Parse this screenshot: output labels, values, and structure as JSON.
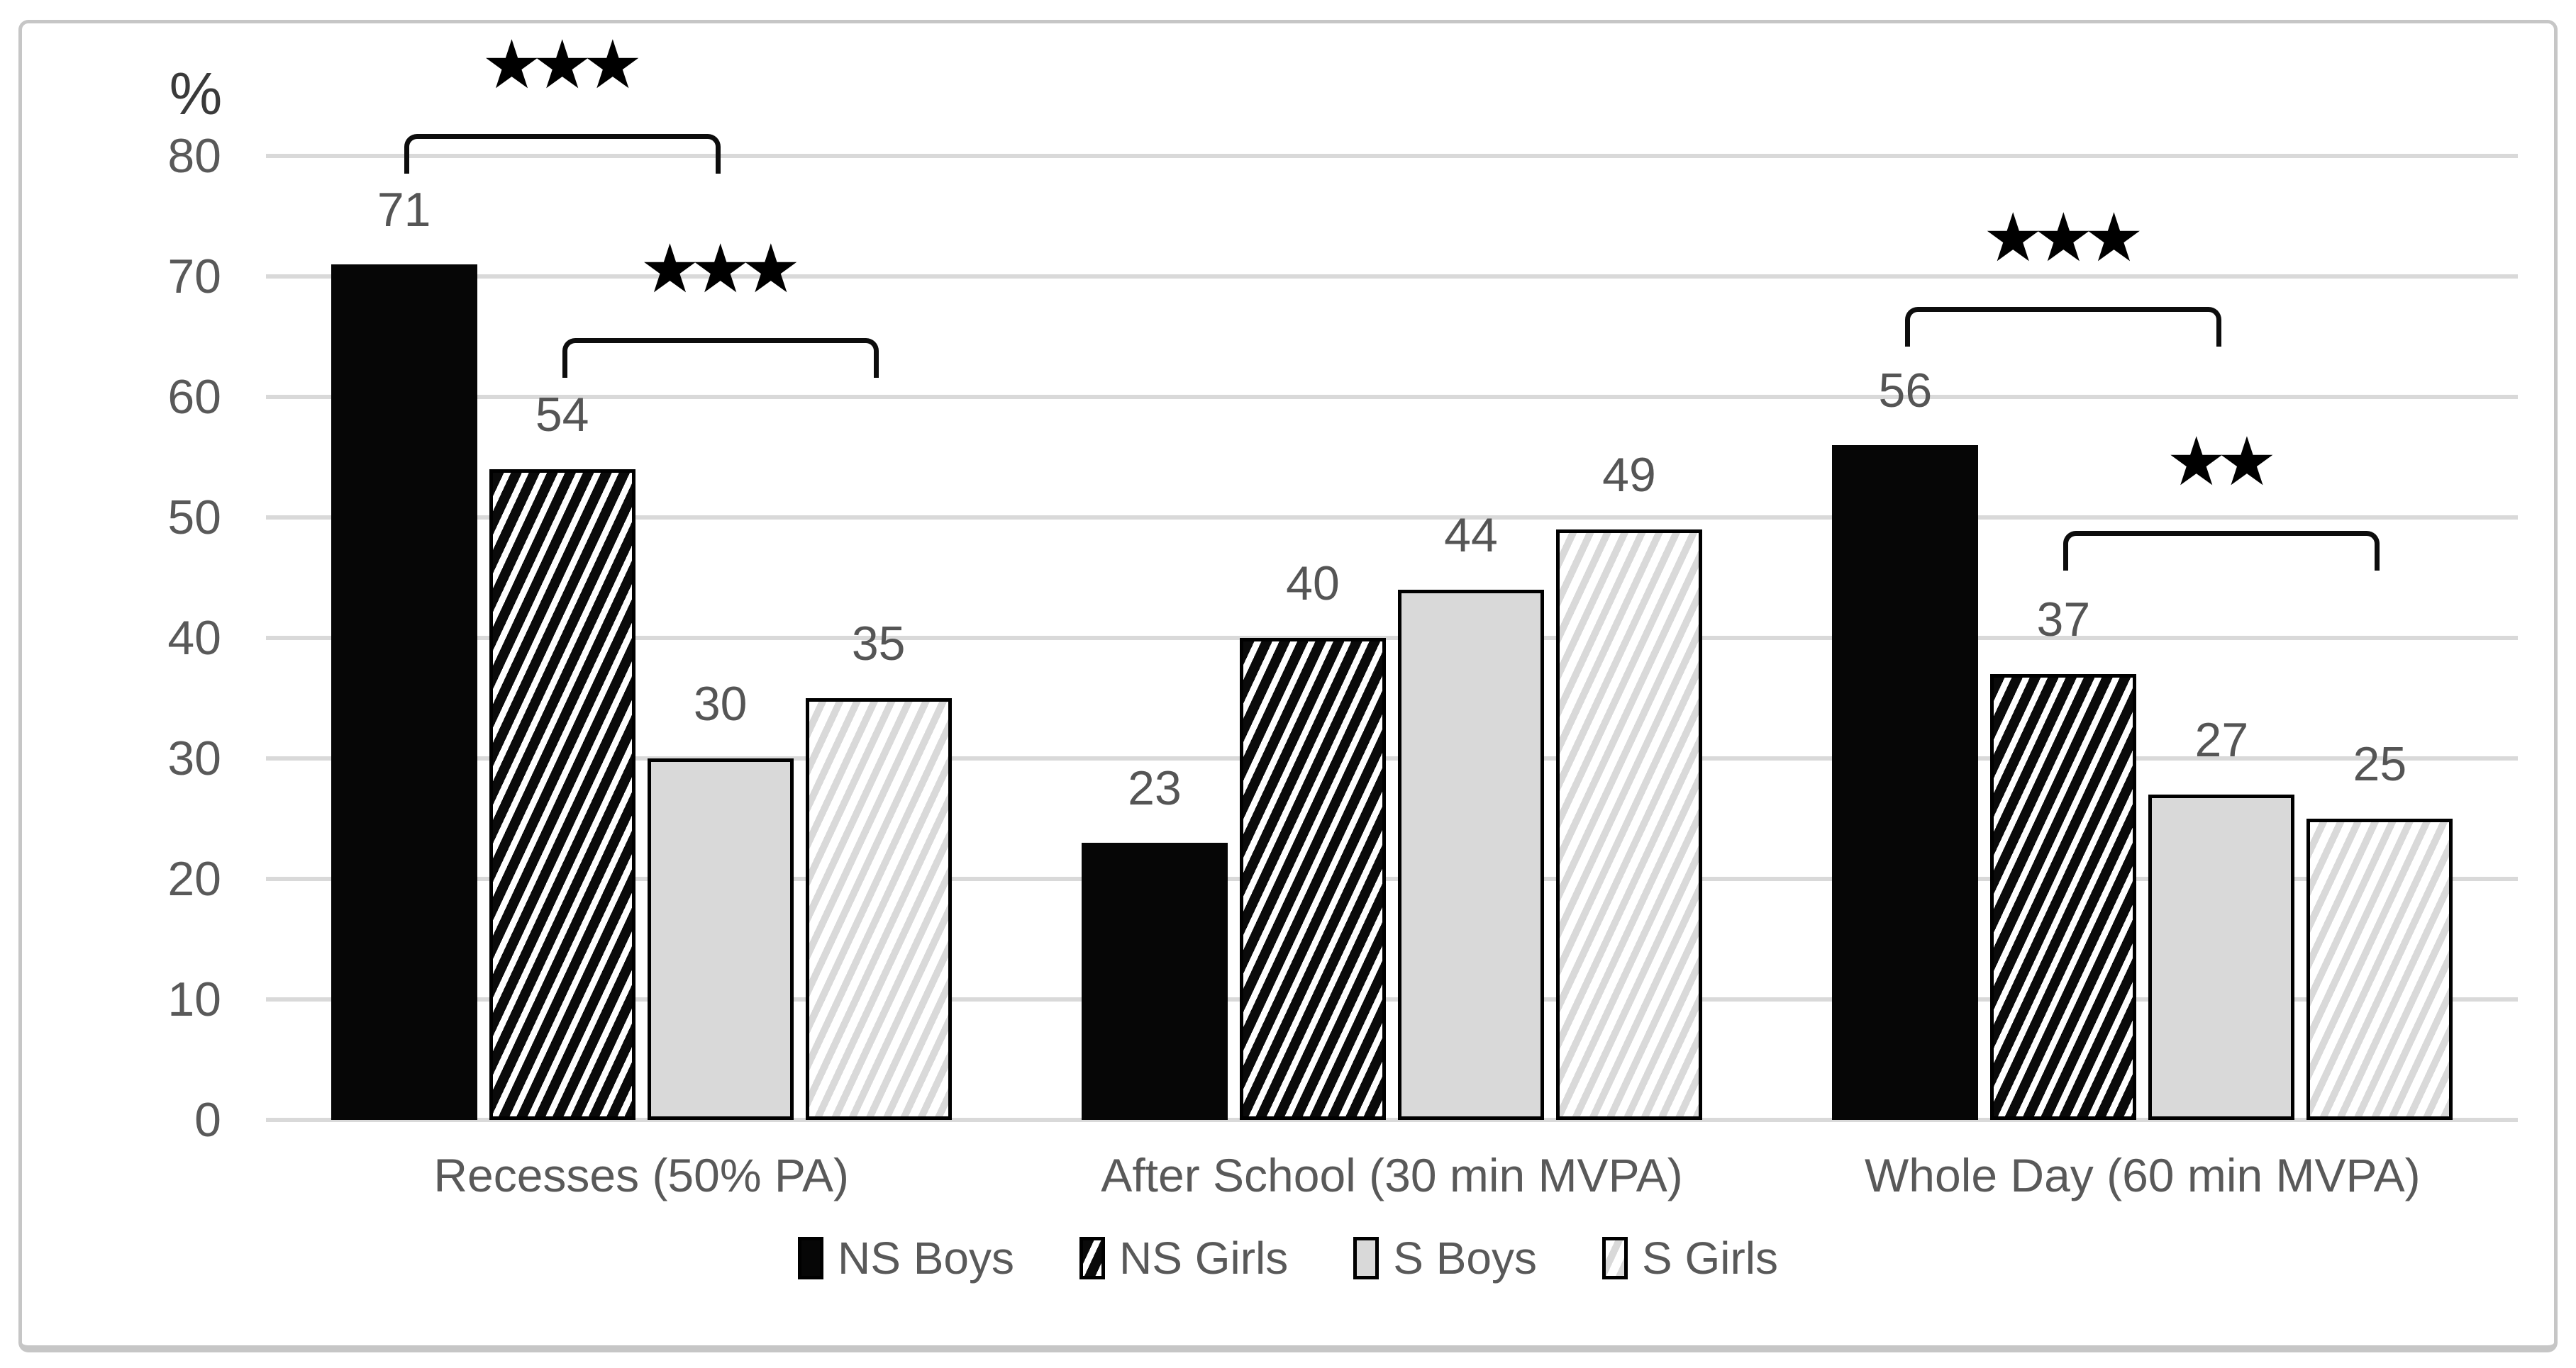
{
  "frame": {
    "border_color": "#c6c6c6",
    "background": "#ffffff"
  },
  "colors": {
    "axis_text": "#595959",
    "gridline": "#d9d9d9",
    "bar_black": "#060606",
    "bar_gray": "#d9d9d9",
    "annotation": "#000000"
  },
  "chart_data": {
    "type": "bar",
    "title": "",
    "xlabel": "",
    "ylabel": "%",
    "ylim": [
      0,
      80
    ],
    "yticks": [
      "0",
      "10",
      "20",
      "30",
      "40",
      "50",
      "60",
      "70",
      "80"
    ],
    "grid": true,
    "legend_position": "bottom",
    "categories": [
      "Recesses (50% PA)",
      "After School (30 min MVPA)",
      "Whole Day (60 min MVPA)"
    ],
    "series": [
      {
        "name": "NS Boys",
        "pattern": "solid-black",
        "values": [
          71,
          23,
          56
        ]
      },
      {
        "name": "NS Girls",
        "pattern": "black-hatch",
        "values": [
          54,
          40,
          37
        ]
      },
      {
        "name": "S Boys",
        "pattern": "gray-solid",
        "values": [
          30,
          44,
          27
        ]
      },
      {
        "name": "S Girls",
        "pattern": "light-hatch",
        "values": [
          35,
          49,
          25
        ]
      }
    ],
    "annotations": [
      {
        "category": 0,
        "from_series": 0,
        "to_series": 2,
        "stars": "★★★",
        "line_value": 81.8
      },
      {
        "category": 0,
        "from_series": 1,
        "to_series": 3,
        "stars": "★★★",
        "line_value": 64.9
      },
      {
        "category": 2,
        "from_series": 0,
        "to_series": 2,
        "stars": "★★★",
        "line_value": 67.5
      },
      {
        "category": 2,
        "from_series": 1,
        "to_series": 3,
        "stars": "★★",
        "line_value": 48.9
      }
    ]
  }
}
